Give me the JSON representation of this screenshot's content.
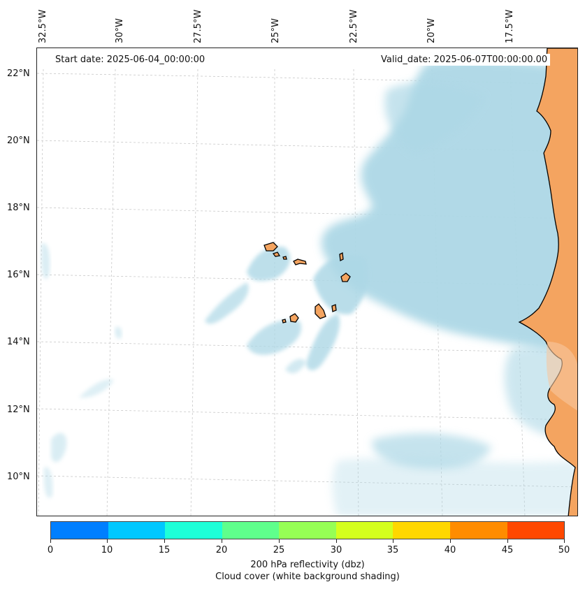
{
  "map": {
    "start_date": "Start date: 2025-06-04_00:00:00",
    "valid_date": "Valid_date: 2025-06-07T00:00:00.00",
    "lon_labels": [
      "32.5°W",
      "30°W",
      "27.5°W",
      "25°W",
      "22.5°W",
      "20°W",
      "17.5°W"
    ],
    "lat_labels": [
      "22°N",
      "20°N",
      "18°N",
      "16°N",
      "14°N",
      "12°N",
      "10°N"
    ],
    "extent": {
      "lon_min": -32.5,
      "lon_max": -16.3,
      "lat_min": 8.9,
      "lat_max": 22.7
    },
    "land_color": "#f4a460",
    "cloud_color": "#add8e6",
    "places": [
      "Cabo Verde islands",
      "West African coast"
    ]
  },
  "colorbar": {
    "ticks": [
      "0",
      "10",
      "15",
      "20",
      "25",
      "30",
      "35",
      "40",
      "45",
      "50"
    ],
    "colors": [
      "#007fff",
      "#00c8ff",
      "#1effd8",
      "#5fff8c",
      "#96ff55",
      "#d4ff1e",
      "#ffd700",
      "#ff8c00",
      "#ff4800"
    ],
    "label": "200 hPa reflectivity (dbz)",
    "sublabel": "Cloud cover (white background shading)"
  }
}
